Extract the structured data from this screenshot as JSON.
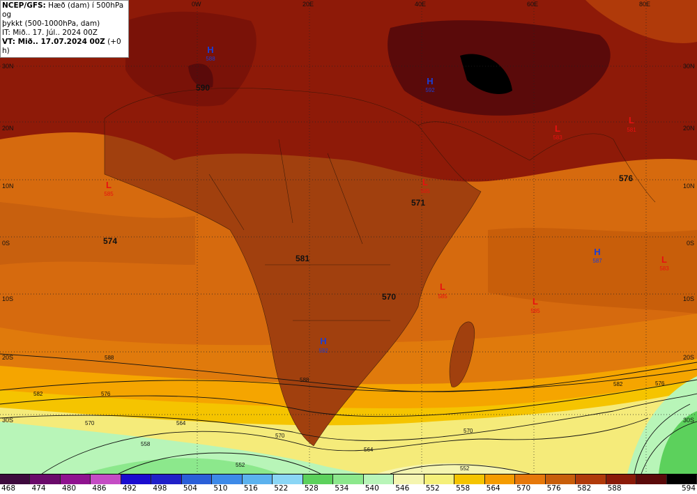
{
  "header": {
    "line1_bold": "NCEP/GFS:",
    "line1_rest": " Hæð (dam) í 500hPa og",
    "line2": "þykkt (500-1000hPa, dam)",
    "line3": "IT: Mið.. 17. Júl.. 2024 00Z",
    "line4_bold": "VT: Mið.. 17.07.2024 00Z",
    "line4_rest": " (+0 h)"
  },
  "longitude_labels": [
    "0W",
    "20E",
    "40E",
    "60E",
    "80E"
  ],
  "latitude_labels": [
    "30N",
    "20N",
    "10N",
    "0S",
    "10S",
    "20S",
    "30S"
  ],
  "big_labels": [
    "590",
    "576",
    "571",
    "574",
    "581",
    "570"
  ],
  "contour_labels": [
    "588",
    "582",
    "576",
    "570",
    "564",
    "558",
    "552"
  ],
  "pressure_centers": [
    {
      "type": "H",
      "value": "588"
    },
    {
      "type": "H",
      "value": "592"
    },
    {
      "type": "H",
      "value": "592"
    },
    {
      "type": "H",
      "value": "587"
    },
    {
      "type": "L",
      "value": "583"
    },
    {
      "type": "L",
      "value": "581"
    },
    {
      "type": "L",
      "value": "585"
    },
    {
      "type": "L",
      "value": "585"
    },
    {
      "type": "L",
      "value": "585"
    },
    {
      "type": "L",
      "value": "585"
    },
    {
      "type": "L",
      "value": "583"
    }
  ],
  "colorbar": {
    "values": [
      "468",
      "474",
      "480",
      "486",
      "492",
      "498",
      "504",
      "510",
      "516",
      "522",
      "528",
      "534",
      "540",
      "546",
      "552",
      "558",
      "564",
      "570",
      "576",
      "582",
      "588",
      "594"
    ],
    "colors": [
      "#3d0a3d",
      "#6a0a6a",
      "#8f128f",
      "#c44cc4",
      "#1a0ccf",
      "#2020c8",
      "#2a5fd8",
      "#3d8ae8",
      "#5bb2ee",
      "#8ad6f5",
      "#5cd15c",
      "#8ce88c",
      "#b8f5b8",
      "#f5f5b0",
      "#f5f07a",
      "#f5c400",
      "#f59c00",
      "#e6780a",
      "#c85e0a",
      "#b03a0a",
      "#8a1a08",
      "#5a0a0a",
      "#000000"
    ]
  },
  "colors": {
    "ocean_orange": "#d66a0e",
    "land_dark": "#a1400e",
    "north_dark": "#8e1a08",
    "darkest": "#5a0a0a",
    "yellow": "#f5eb7a",
    "green": "#b8f5b8"
  }
}
